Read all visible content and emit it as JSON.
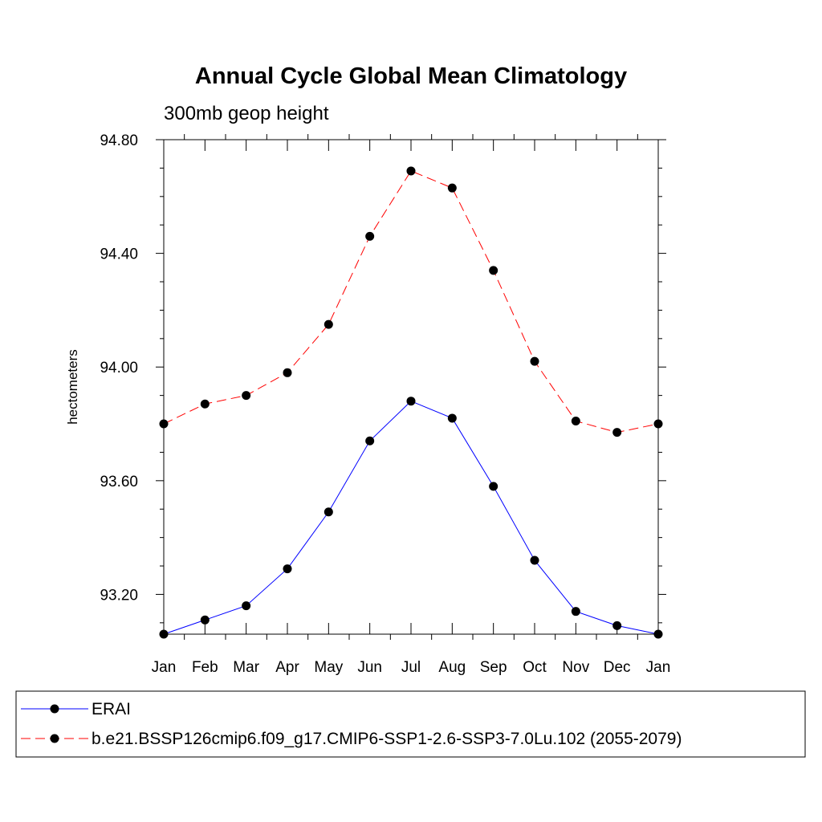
{
  "chart_data": {
    "type": "line",
    "title": "Annual Cycle Global Mean Climatology",
    "subtitle": "300mb geop height",
    "ylabel": "hectometers",
    "xlabel": "",
    "categories": [
      "Jan",
      "Feb",
      "Mar",
      "Apr",
      "May",
      "Jun",
      "Jul",
      "Aug",
      "Sep",
      "Oct",
      "Nov",
      "Dec",
      "Jan"
    ],
    "ylim": [
      93.06,
      94.8
    ],
    "yticks": [
      93.2,
      93.6,
      94.0,
      94.4,
      94.8
    ],
    "ytick_labels": [
      "93.20",
      "93.60",
      "94.00",
      "94.40",
      "94.80"
    ],
    "grid": false,
    "legend_position": "bottom",
    "series": [
      {
        "name": "ERAI",
        "color": "#0000ff",
        "line_style": "solid",
        "values": [
          93.06,
          93.11,
          93.16,
          93.29,
          93.49,
          93.74,
          93.88,
          93.82,
          93.58,
          93.32,
          93.14,
          93.09,
          93.06
        ]
      },
      {
        "name": "b.e21.BSSP126cmip6.f09_g17.CMIP6-SSP1-2.6-SSP3-7.0Lu.102 (2055-2079)",
        "color": "#ff0000",
        "line_style": "dashed",
        "values": [
          93.8,
          93.87,
          93.9,
          93.98,
          94.15,
          94.46,
          94.69,
          94.63,
          94.34,
          94.02,
          93.81,
          93.77,
          93.8
        ]
      }
    ]
  }
}
